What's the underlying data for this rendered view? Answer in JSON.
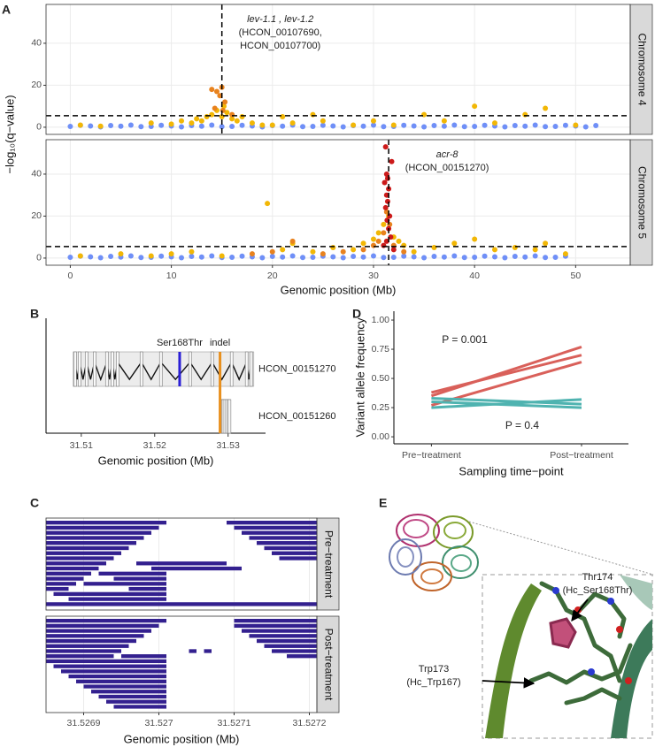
{
  "panel_labels": [
    "A",
    "B",
    "C",
    "D",
    "E"
  ],
  "chart_data": [
    {
      "type": "scatter",
      "facet": "Chromosome 4",
      "ylabel": "−log₁₀(q−value)",
      "xlim": [
        -2.4,
        55.4
      ],
      "ylim": [
        -3.4,
        58.5
      ],
      "xticks": [
        0,
        10,
        20,
        30,
        40,
        50
      ],
      "yticks": [
        0,
        20,
        40
      ],
      "grid": true,
      "hline": 5.5,
      "vline": 15,
      "annotation": [
        "lev-1.1 , lev-1.2",
        "(HCON_00107690,",
        "HCON_00107700)"
      ],
      "series": [
        {
          "color": "#6f8ff7",
          "x": [
            0,
            1,
            2,
            3,
            4,
            5,
            6,
            7,
            8,
            9,
            10,
            11,
            12,
            13,
            14,
            15,
            16,
            17,
            18,
            19,
            20,
            21,
            22,
            23,
            24,
            25,
            26,
            27,
            28,
            29,
            30,
            31,
            32,
            33,
            34,
            35,
            36,
            37,
            38,
            39,
            40,
            41,
            42,
            43,
            44,
            45,
            46,
            47,
            48,
            49,
            50,
            51,
            52
          ],
          "values": [
            0.4,
            0.9,
            0.6,
            0.2,
            0.8,
            0.5,
            1.0,
            0.3,
            0.4,
            0.9,
            0.6,
            0.2,
            0.8,
            0.5,
            1.0,
            0.3,
            0.4,
            0.9,
            0.6,
            0.2,
            0.8,
            0.5,
            1.0,
            0.3,
            0.4,
            0.9,
            0.6,
            0.2,
            0.8,
            0.5,
            1.0,
            0.3,
            0.4,
            0.9,
            0.6,
            0.2,
            0.8,
            0.5,
            1.0,
            0.3,
            0.4,
            0.9,
            0.6,
            0.2,
            0.8,
            0.5,
            1.0,
            0.3,
            0.4,
            0.9,
            0.6,
            0.2,
            0.8
          ]
        },
        {
          "color": "#f2b705",
          "x": [
            1,
            3,
            8,
            10,
            11,
            12,
            12.5,
            13,
            13.5,
            14,
            14.5,
            15,
            15.2,
            15.5,
            16,
            16.5,
            17,
            18,
            19,
            20,
            21,
            22,
            24,
            25,
            28,
            30,
            32,
            35,
            37,
            40,
            42,
            45,
            47,
            50
          ],
          "values": [
            1,
            0.5,
            2,
            1.5,
            3,
            2,
            4,
            3,
            5,
            6,
            8,
            5,
            10,
            7,
            4,
            3,
            5,
            2,
            1,
            1,
            5,
            2,
            6,
            3,
            1,
            3,
            1,
            6,
            3,
            10,
            2,
            6,
            9,
            1
          ]
        },
        {
          "color": "#e8821e",
          "x": [
            14,
            14.5,
            15,
            14.8,
            15.3,
            14.3,
            15.1,
            16
          ],
          "values": [
            18,
            17,
            19,
            15,
            12,
            9,
            8,
            6
          ]
        }
      ]
    },
    {
      "type": "scatter",
      "facet": "Chromosome 5",
      "xlabel": "Genomic position (Mb)",
      "xlim": [
        -2.4,
        55.4
      ],
      "ylim": [
        -3.4,
        56.4
      ],
      "xticks": [
        0,
        10,
        20,
        30,
        40,
        50
      ],
      "yticks": [
        0,
        20,
        40
      ],
      "grid": true,
      "hline": 5.5,
      "vline": 31.5,
      "annotation": [
        "acr-8",
        "(HCON_00151270)"
      ],
      "series": [
        {
          "color": "#6f8ff7",
          "x": [
            0,
            1,
            2,
            3,
            4,
            5,
            6,
            7,
            8,
            9,
            10,
            11,
            12,
            13,
            14,
            15,
            16,
            17,
            18,
            19,
            20,
            21,
            22,
            23,
            24,
            25,
            26,
            27,
            28,
            29,
            30,
            31,
            32,
            33,
            34,
            35,
            36,
            37,
            38,
            39,
            40,
            41,
            42,
            43,
            44,
            45,
            46,
            47,
            48,
            49
          ],
          "values": [
            0.4,
            0.9,
            0.6,
            0.2,
            0.8,
            0.5,
            1.0,
            0.3,
            0.4,
            0.9,
            0.6,
            0.2,
            0.8,
            0.5,
            1.0,
            0.3,
            0.4,
            0.9,
            0.6,
            0.2,
            0.8,
            0.5,
            1.0,
            0.3,
            0.4,
            0.9,
            0.6,
            0.2,
            0.8,
            0.5,
            1.0,
            0.3,
            0.4,
            0.9,
            0.6,
            0.2,
            0.8,
            0.5,
            1.0,
            0.3,
            0.4,
            0.9,
            0.6,
            0.2,
            0.8,
            0.5,
            1.0,
            0.3,
            0.4,
            0.9
          ]
        },
        {
          "color": "#f2b705",
          "x": [
            1,
            5,
            8,
            10,
            12,
            15,
            19.5,
            21,
            22,
            24,
            26,
            28,
            29,
            30,
            30.5,
            31,
            31.5,
            32,
            32.5,
            33,
            34,
            36,
            38,
            40,
            42,
            44,
            46,
            47,
            49
          ],
          "values": [
            1,
            2,
            1,
            2,
            3,
            1,
            26,
            4,
            7,
            3,
            5,
            4,
            7,
            9,
            12,
            16,
            20,
            10,
            8,
            6,
            3,
            5,
            7,
            9,
            4,
            5,
            4,
            7,
            2
          ]
        },
        {
          "color": "#e8821e",
          "x": [
            18,
            22,
            27,
            29,
            30,
            30.5,
            31,
            31.3,
            31.6,
            32,
            33,
            20,
            25
          ],
          "values": [
            2,
            8,
            3,
            4,
            6,
            8,
            12,
            22,
            16,
            6,
            3,
            3,
            2
          ]
        },
        {
          "color": "#cc1a1a",
          "x": [
            31.2,
            31.3,
            31.4,
            31.1,
            31.5,
            31.3,
            31.4,
            31.2,
            31.6,
            31.8,
            31.35,
            31.5,
            31.7,
            31.3,
            32,
            31
          ],
          "values": [
            53,
            40,
            38,
            36,
            33,
            30,
            27,
            24,
            20,
            46,
            18,
            14,
            10,
            8,
            4,
            6
          ]
        }
      ]
    },
    {
      "type": "gene",
      "xlabel": "Genomic position (Mb)",
      "xlim": [
        31.5052,
        31.5351
      ],
      "xticks": [
        31.51,
        31.52,
        31.53
      ],
      "genes": [
        {
          "name": "HCON_00151270",
          "start": 31.5089,
          "end": 31.5335,
          "exons": [
            31.50916,
            31.50976,
            31.51072,
            31.51181,
            31.51349,
            31.51422,
            31.51494,
            31.51819,
            31.52084,
            31.52482,
            31.52783,
            31.53048,
            31.53253,
            31.53313
          ]
        },
        {
          "name": "HCON_00151260",
          "start": 31.52888,
          "end": 31.5303,
          "exons": [
            31.52916,
            31.5293,
            31.5295,
            31.52975,
            31.53,
            31.5302
          ]
        }
      ],
      "variants": [
        {
          "name": "Ser168Thr",
          "position": 31.5234,
          "color": "#2b1fd6"
        },
        {
          "name": "indel",
          "position": 31.5289,
          "color": "#e8901e"
        }
      ]
    },
    {
      "type": "reads",
      "facet": "Pre−treatment",
      "xlim": [
        31.52685,
        31.52721
      ],
      "xticks": [
        31.5269,
        31.527,
        31.5271,
        31.5272
      ],
      "grid": true,
      "color": "#33208f",
      "starts": [
        31.52685,
        31.52685,
        31.52685,
        31.52685,
        31.52685,
        31.52685,
        31.52685,
        31.52685,
        31.52685,
        31.52685,
        31.52685,
        31.52685,
        31.52685,
        31.52685,
        31.52709,
        31.5271,
        31.52711,
        31.52712,
        31.52713,
        31.52714,
        31.52715,
        31.52716,
        31.52697,
        31.52699,
        31.52686,
        31.52688,
        31.5269,
        31.52692,
        31.52694,
        31.52696,
        31.52685
      ],
      "ends": [
        31.52701,
        31.527,
        31.52699,
        31.52698,
        31.52697,
        31.52696,
        31.52695,
        31.52694,
        31.52693,
        31.52692,
        31.52691,
        31.5269,
        31.52689,
        31.52688,
        31.52721,
        31.52721,
        31.52721,
        31.52721,
        31.52721,
        31.52721,
        31.52721,
        31.52721,
        31.52709,
        31.52711,
        31.52701,
        31.52701,
        31.52701,
        31.52701,
        31.52701,
        31.52701,
        31.52721
      ]
    },
    {
      "type": "reads",
      "facet": "Post−treatment",
      "xlabel": "Genomic position (Mb)",
      "xlim": [
        31.52685,
        31.52721
      ],
      "xticks": [
        31.5269,
        31.527,
        31.5271,
        31.5272
      ],
      "grid": true,
      "color": "#33208f",
      "starts": [
        31.52685,
        31.52685,
        31.52685,
        31.52685,
        31.52685,
        31.52685,
        31.52685,
        31.52685,
        31.5271,
        31.5271,
        31.52711,
        31.52712,
        31.52713,
        31.52714,
        31.52704,
        31.52706,
        31.52685,
        31.52686,
        31.52687,
        31.52688,
        31.52689,
        31.5269,
        31.52691,
        31.52692,
        31.52693,
        31.52694,
        31.52695,
        31.52715,
        31.52717
      ],
      "ends": [
        31.52701,
        31.527,
        31.52699,
        31.52698,
        31.52697,
        31.52696,
        31.52695,
        31.52694,
        31.52721,
        31.52721,
        31.52721,
        31.52721,
        31.52721,
        31.52721,
        31.52705,
        31.52707,
        31.52701,
        31.52701,
        31.52701,
        31.52701,
        31.52701,
        31.52701,
        31.52701,
        31.52701,
        31.52701,
        31.52701,
        31.52701,
        31.52721,
        31.52721
      ]
    },
    {
      "type": "line",
      "ylabel": "Variant allele frequency",
      "xlabel": "Sampling time−point",
      "categories": [
        "Pre−treatment",
        "Post−treatment"
      ],
      "ylim": [
        -0.06,
        1.076
      ],
      "yticks": [
        {
          "value": 0,
          "label": "0.00"
        },
        {
          "value": 0.25,
          "label": "0.25"
        },
        {
          "value": 0.5,
          "label": "0.50"
        },
        {
          "value": 0.75,
          "label": "0.75"
        },
        {
          "value": 1,
          "label": "1.00"
        }
      ],
      "series": [
        {
          "color": "#d9605a",
          "values": [
            0.35,
            0.77
          ]
        },
        {
          "color": "#d9605a",
          "values": [
            0.38,
            0.7
          ]
        },
        {
          "color": "#d9605a",
          "values": [
            0.27,
            0.64
          ]
        },
        {
          "color": "#4fb3b0",
          "values": [
            0.3,
            0.25
          ]
        },
        {
          "color": "#4fb3b0",
          "values": [
            0.25,
            0.32
          ]
        },
        {
          "color": "#4fb3b0",
          "values": [
            0.33,
            0.28
          ]
        }
      ],
      "annotations": [
        {
          "text": "P = 0.001",
          "color": "#d03030"
        },
        {
          "text": "P = 0.4",
          "color": "#2a22d0"
        }
      ]
    }
  ],
  "panel_e": {
    "labels": [
      "Thr174",
      "(Hc_Ser168Thr)",
      "Trp173",
      "(Hc_Trp167)"
    ]
  }
}
